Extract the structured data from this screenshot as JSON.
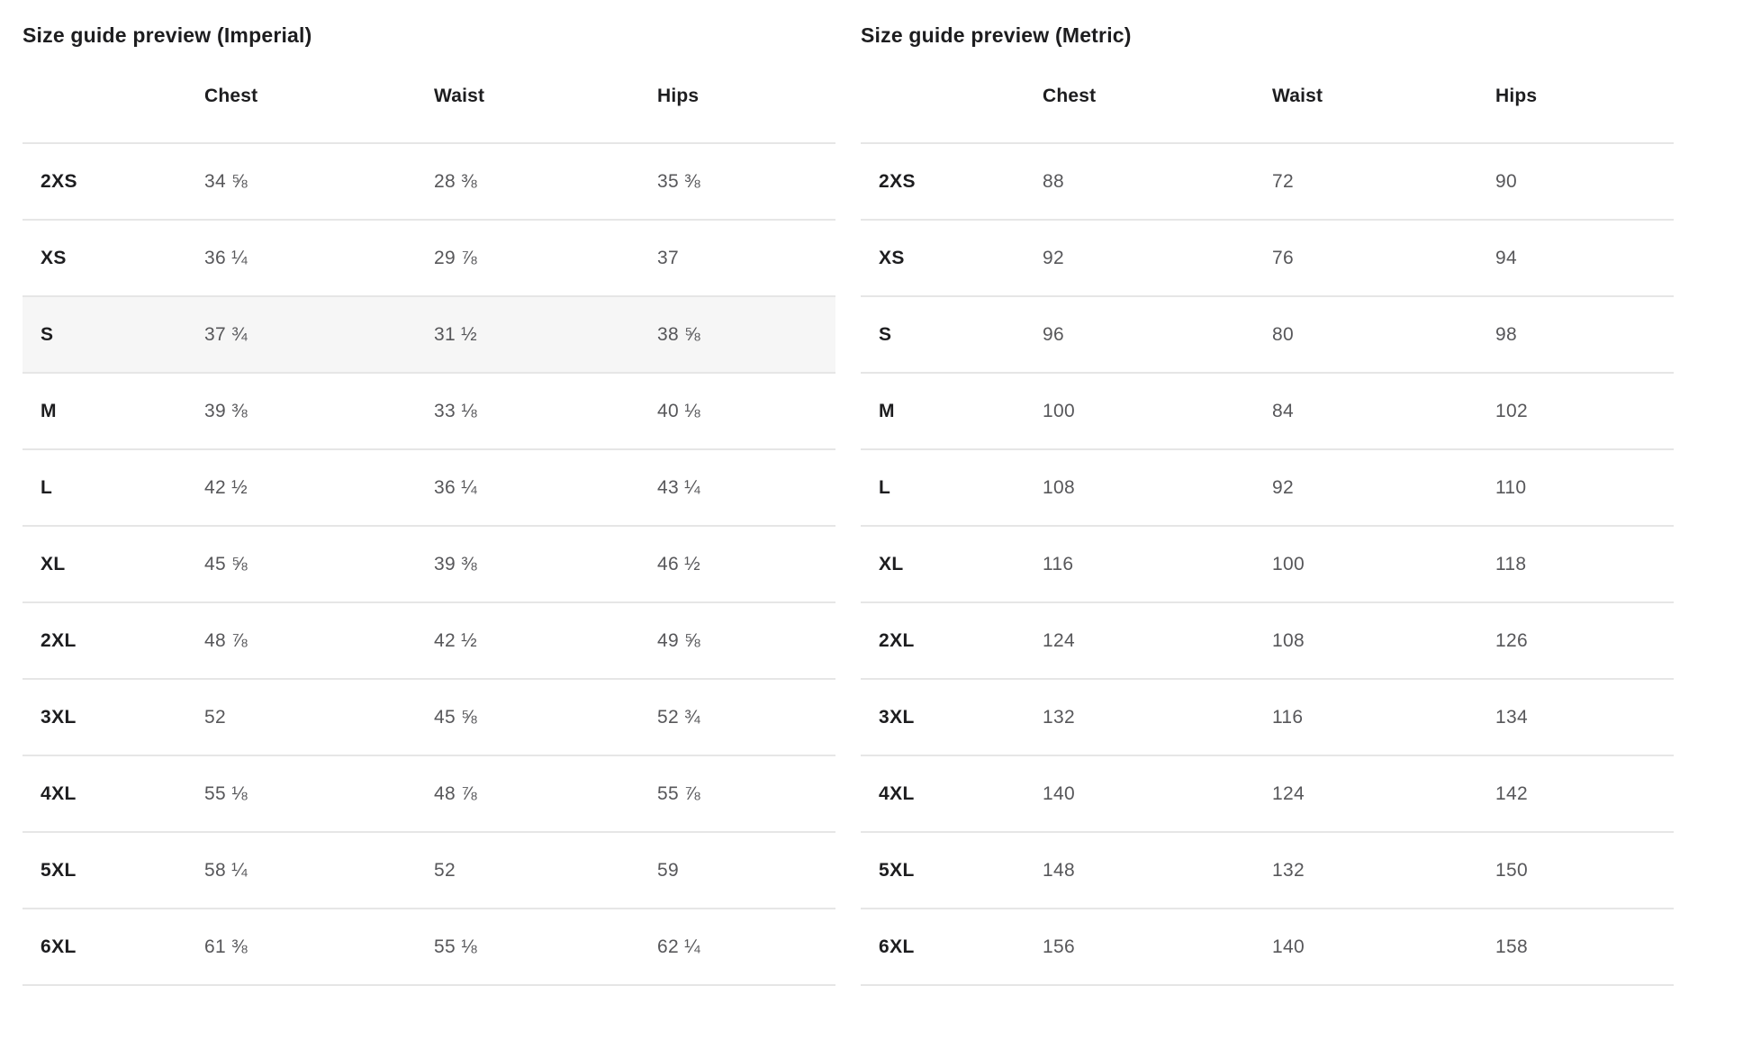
{
  "colors": {
    "heading": "#1d1d1f",
    "value": "#57575a",
    "border": "#e6e6e6",
    "row_highlight": "#f6f6f6",
    "page_background": "#ffffff"
  },
  "tables": [
    {
      "id": "imperial",
      "title": "Size guide preview (Imperial)",
      "columns": [
        "Chest",
        "Waist",
        "Hips"
      ],
      "rows": [
        {
          "size": "2XS",
          "chest": "34 ⅝",
          "waist": "28 ⅜",
          "hips": "35 ⅜",
          "highlighted": false
        },
        {
          "size": "XS",
          "chest": "36 ¼",
          "waist": "29 ⅞",
          "hips": "37",
          "highlighted": false
        },
        {
          "size": "S",
          "chest": "37 ¾",
          "waist": "31 ½",
          "hips": "38 ⅝",
          "highlighted": true
        },
        {
          "size": "M",
          "chest": "39 ⅜",
          "waist": "33 ⅛",
          "hips": "40 ⅛",
          "highlighted": false
        },
        {
          "size": "L",
          "chest": "42 ½",
          "waist": "36 ¼",
          "hips": "43 ¼",
          "highlighted": false
        },
        {
          "size": "XL",
          "chest": "45 ⅝",
          "waist": "39 ⅜",
          "hips": "46 ½",
          "highlighted": false
        },
        {
          "size": "2XL",
          "chest": "48 ⅞",
          "waist": "42 ½",
          "hips": "49 ⅝",
          "highlighted": false
        },
        {
          "size": "3XL",
          "chest": "52",
          "waist": "45 ⅝",
          "hips": "52 ¾",
          "highlighted": false
        },
        {
          "size": "4XL",
          "chest": "55 ⅛",
          "waist": "48 ⅞",
          "hips": "55 ⅞",
          "highlighted": false
        },
        {
          "size": "5XL",
          "chest": "58 ¼",
          "waist": "52",
          "hips": "59",
          "highlighted": false
        },
        {
          "size": "6XL",
          "chest": "61 ⅜",
          "waist": "55 ⅛",
          "hips": "62 ¼",
          "highlighted": false
        }
      ]
    },
    {
      "id": "metric",
      "title": "Size guide preview (Metric)",
      "columns": [
        "Chest",
        "Waist",
        "Hips"
      ],
      "rows": [
        {
          "size": "2XS",
          "chest": "88",
          "waist": "72",
          "hips": "90",
          "highlighted": false
        },
        {
          "size": "XS",
          "chest": "92",
          "waist": "76",
          "hips": "94",
          "highlighted": false
        },
        {
          "size": "S",
          "chest": "96",
          "waist": "80",
          "hips": "98",
          "highlighted": false
        },
        {
          "size": "M",
          "chest": "100",
          "waist": "84",
          "hips": "102",
          "highlighted": false
        },
        {
          "size": "L",
          "chest": "108",
          "waist": "92",
          "hips": "110",
          "highlighted": false
        },
        {
          "size": "XL",
          "chest": "116",
          "waist": "100",
          "hips": "118",
          "highlighted": false
        },
        {
          "size": "2XL",
          "chest": "124",
          "waist": "108",
          "hips": "126",
          "highlighted": false
        },
        {
          "size": "3XL",
          "chest": "132",
          "waist": "116",
          "hips": "134",
          "highlighted": false
        },
        {
          "size": "4XL",
          "chest": "140",
          "waist": "124",
          "hips": "142",
          "highlighted": false
        },
        {
          "size": "5XL",
          "chest": "148",
          "waist": "132",
          "hips": "150",
          "highlighted": false
        },
        {
          "size": "6XL",
          "chest": "156",
          "waist": "140",
          "hips": "158",
          "highlighted": false
        }
      ]
    }
  ]
}
